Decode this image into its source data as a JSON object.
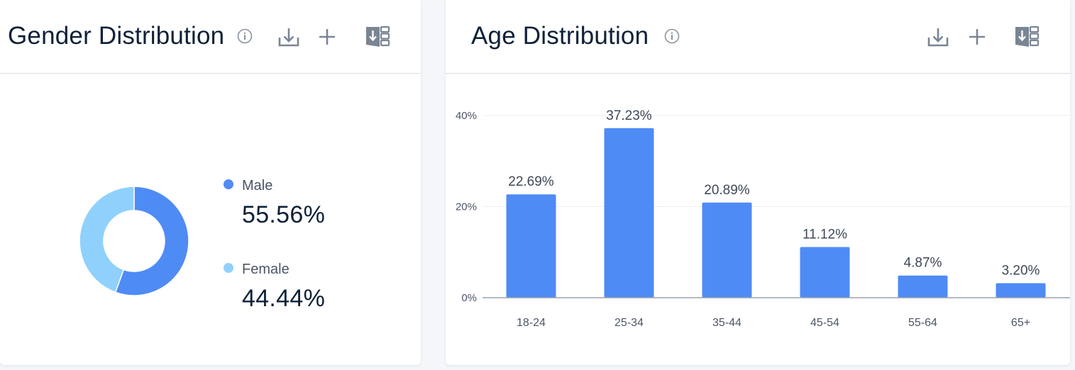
{
  "colors": {
    "male": "#4f8bf5",
    "female": "#8fd1fc",
    "bar": "#4f8bf5",
    "icon": "#7a8594",
    "gridline": "#eceff3",
    "axis": "#9aa2ad"
  },
  "gender_card": {
    "title": "Gender Distribution",
    "icons": [
      "info-icon",
      "download-icon",
      "plus-icon",
      "export-icon"
    ]
  },
  "age_card": {
    "title": "Age Distribution",
    "icons": [
      "info-icon",
      "download-icon",
      "plus-icon",
      "export-icon"
    ]
  },
  "chart_data": [
    {
      "type": "pie",
      "variant": "donut",
      "title": "Gender Distribution",
      "categories": [
        "Male",
        "Female"
      ],
      "values": [
        55.56,
        44.44
      ],
      "value_labels": [
        "55.56%",
        "44.44%"
      ],
      "legend_position": "right"
    },
    {
      "type": "bar",
      "title": "Age Distribution",
      "categories": [
        "18-24",
        "25-34",
        "35-44",
        "45-54",
        "55-64",
        "65+"
      ],
      "values": [
        22.69,
        37.23,
        20.89,
        11.12,
        4.87,
        3.2
      ],
      "value_labels": [
        "22.69%",
        "37.23%",
        "20.89%",
        "11.12%",
        "4.87%",
        "3.20%"
      ],
      "ylim": [
        0,
        40
      ],
      "yticks": [
        0,
        20,
        40
      ],
      "ytick_labels": [
        "0%",
        "20%",
        "40%"
      ],
      "xlabel": "",
      "ylabel": "",
      "grid": true
    }
  ]
}
